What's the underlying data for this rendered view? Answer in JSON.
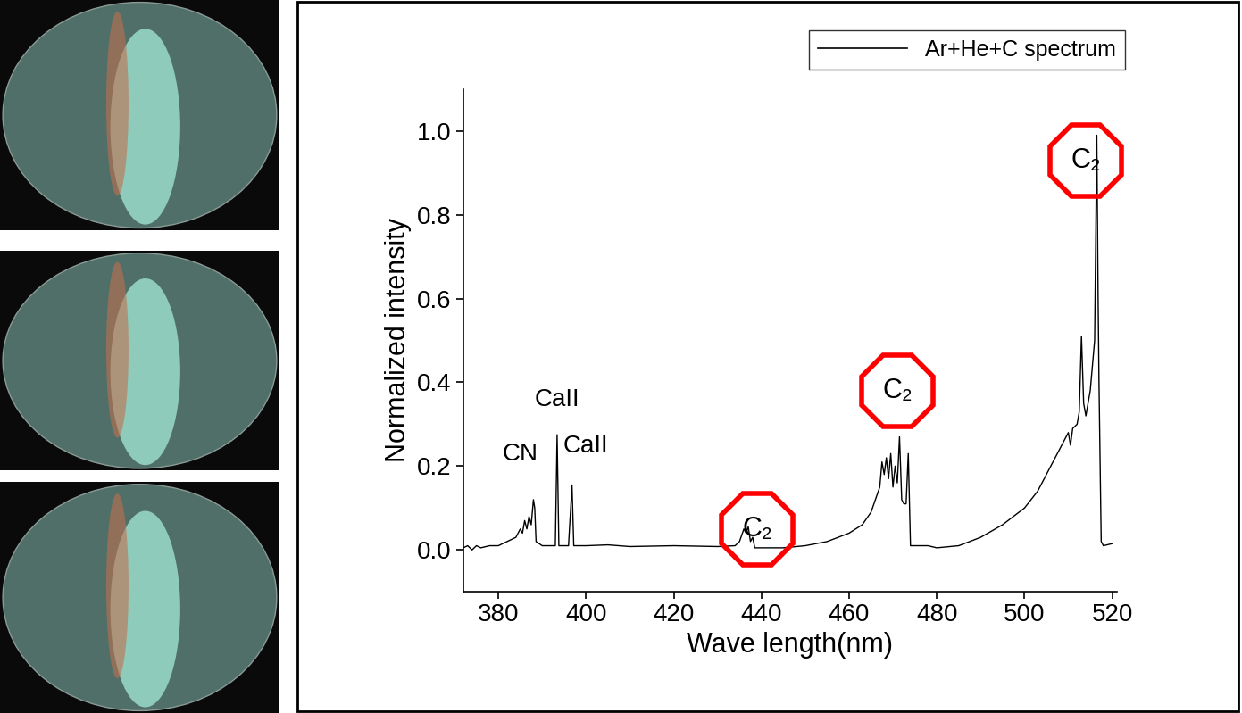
{
  "chart_data": {
    "type": "line",
    "xlabel": "Wave length(nm)",
    "ylabel": "Normalized intensity",
    "xlim": [
      372,
      521
    ],
    "ylim": [
      -0.1,
      1.1
    ],
    "xticks": [
      380,
      400,
      420,
      440,
      460,
      480,
      500,
      520
    ],
    "yticks": [
      0.0,
      0.2,
      0.4,
      0.6,
      0.8,
      1.0
    ],
    "grid": false,
    "legend": "upper right",
    "series": [
      {
        "name": "Ar+He+C spectrum",
        "color": "#000000",
        "x": [
          372,
          373,
          374,
          375,
          376,
          378,
          380,
          382,
          384,
          385,
          385.5,
          386,
          386.5,
          387,
          387.5,
          388,
          388.3,
          388.6,
          390,
          392,
          393.0,
          393.4,
          393.8,
          396,
          396.8,
          397.2,
          400,
          405,
          410,
          420,
          430,
          434,
          435,
          436,
          436.5,
          437,
          437.5,
          438,
          438.5,
          440,
          445,
          450,
          455,
          460,
          463,
          465,
          467,
          467.5,
          468,
          468.5,
          469,
          469.5,
          470,
          470.5,
          471,
          471.5,
          472,
          472.5,
          473,
          473.5,
          474,
          478,
          480,
          485,
          490,
          495,
          500,
          503,
          505,
          507,
          509,
          510,
          510.5,
          511,
          512,
          512.5,
          513,
          513.5,
          514,
          515,
          516,
          516.5,
          516.8,
          517,
          517.5,
          518,
          520
        ],
        "values": [
          0.005,
          0.01,
          0.0,
          0.01,
          0.005,
          0.01,
          0.01,
          0.02,
          0.03,
          0.05,
          0.04,
          0.07,
          0.05,
          0.08,
          0.06,
          0.12,
          0.1,
          0.02,
          0.01,
          0.01,
          0.01,
          0.275,
          0.01,
          0.01,
          0.155,
          0.01,
          0.01,
          0.012,
          0.008,
          0.01,
          0.008,
          0.01,
          0.02,
          0.05,
          0.04,
          0.055,
          0.02,
          0.03,
          0.005,
          0.005,
          0.005,
          0.01,
          0.02,
          0.04,
          0.06,
          0.09,
          0.15,
          0.21,
          0.18,
          0.22,
          0.17,
          0.23,
          0.15,
          0.2,
          0.16,
          0.27,
          0.12,
          0.11,
          0.11,
          0.23,
          0.01,
          0.01,
          0.005,
          0.01,
          0.03,
          0.06,
          0.1,
          0.14,
          0.18,
          0.22,
          0.26,
          0.28,
          0.25,
          0.29,
          0.3,
          0.33,
          0.51,
          0.35,
          0.32,
          0.38,
          0.5,
          0.99,
          0.6,
          0.4,
          0.02,
          0.01,
          0.015
        ]
      }
    ],
    "annotations": [
      {
        "text": "CN",
        "x": 385,
        "y": 0.2
      },
      {
        "text": "CaII",
        "x": 393.5,
        "y": 0.33
      },
      {
        "text": "CaII",
        "x": 400,
        "y": 0.22
      },
      {
        "text": "C₂",
        "x": 439,
        "y": 0.05
      },
      {
        "text": "C₂",
        "x": 471,
        "y": 0.38
      },
      {
        "text": "C₂",
        "x": 514,
        "y": 0.93
      }
    ]
  }
}
